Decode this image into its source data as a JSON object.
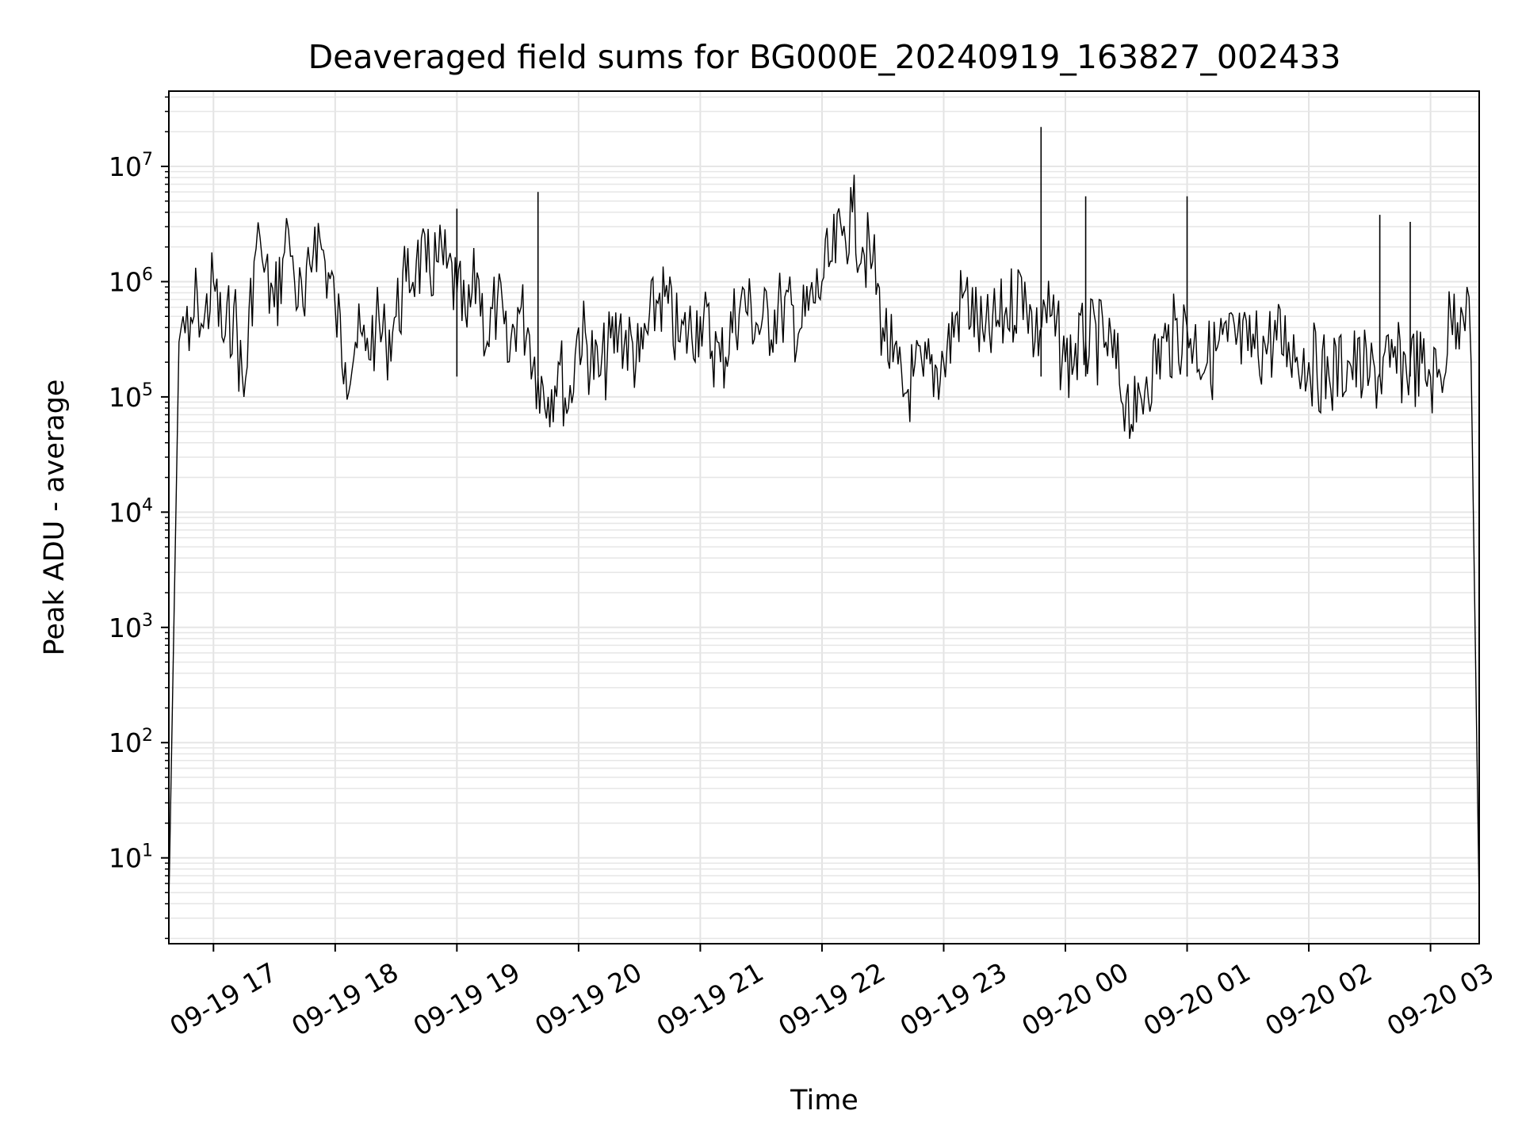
{
  "chart_data": {
    "type": "line",
    "title": "Deaveraged field sums for BG000E_20240919_163827_002433",
    "xlabel": "Time",
    "ylabel": "Peak ADU - average",
    "yscale": "log",
    "grid": true,
    "line_color": "#000000",
    "xlim": [
      "2024-09-19 16:38",
      "2024-09-20 03:24"
    ],
    "ylim": [
      1.8,
      45000000
    ],
    "x_ticks": [
      "09-19 17",
      "09-19 18",
      "09-19 19",
      "09-19 20",
      "09-19 21",
      "09-19 22",
      "09-19 23",
      "09-20 00",
      "09-20 01",
      "09-20 02",
      "09-20 03"
    ],
    "y_ticks": [
      {
        "base": "10",
        "exp": "1",
        "value": 10
      },
      {
        "base": "10",
        "exp": "2",
        "value": 100
      },
      {
        "base": "10",
        "exp": "3",
        "value": 1000
      },
      {
        "base": "10",
        "exp": "4",
        "value": 10000
      },
      {
        "base": "10",
        "exp": "5",
        "value": 100000
      },
      {
        "base": "10",
        "exp": "6",
        "value": 1000000
      },
      {
        "base": "10",
        "exp": "7",
        "value": 10000000
      }
    ],
    "series": [
      {
        "x": [
          "2024-09-19 16:38",
          "2024-09-19 16:43",
          "2024-09-19 16:45",
          "2024-09-19 16:48",
          "2024-09-19 16:52",
          "2024-09-19 16:55",
          "2024-09-19 17:00",
          "2024-09-19 17:05",
          "2024-09-19 17:10",
          "2024-09-19 17:15",
          "2024-09-19 17:20",
          "2024-09-19 17:23",
          "2024-09-19 17:25",
          "2024-09-19 17:30",
          "2024-09-19 17:35",
          "2024-09-19 17:37",
          "2024-09-19 17:40",
          "2024-09-19 17:45",
          "2024-09-19 17:50",
          "2024-09-19 17:55",
          "2024-09-19 18:00",
          "2024-09-19 18:05",
          "2024-09-19 18:10",
          "2024-09-19 18:15",
          "2024-09-19 18:20",
          "2024-09-19 18:25",
          "2024-09-19 18:30",
          "2024-09-19 18:35",
          "2024-09-19 18:40",
          "2024-09-19 18:45",
          "2024-09-19 18:50",
          "2024-09-19 18:55",
          "2024-09-19 19:00",
          "2024-09-19 19:05",
          "2024-09-19 19:10",
          "2024-09-19 19:15",
          "2024-09-19 19:20",
          "2024-09-19 19:25",
          "2024-09-19 19:30",
          "2024-09-19 19:35",
          "2024-09-19 19:40",
          "2024-09-19 19:45",
          "2024-09-19 19:50",
          "2024-09-19 19:55",
          "2024-09-19 20:00",
          "2024-09-19 20:10",
          "2024-09-19 20:20",
          "2024-09-19 20:30",
          "2024-09-19 20:40",
          "2024-09-19 20:50",
          "2024-09-19 21:00",
          "2024-09-19 21:10",
          "2024-09-19 21:20",
          "2024-09-19 21:30",
          "2024-09-19 21:40",
          "2024-09-19 21:50",
          "2024-09-19 22:00",
          "2024-09-19 22:05",
          "2024-09-19 22:10",
          "2024-09-19 22:15",
          "2024-09-19 22:20",
          "2024-09-19 22:25",
          "2024-09-19 22:30",
          "2024-09-19 22:35",
          "2024-09-19 22:40",
          "2024-09-19 22:45",
          "2024-09-19 22:50",
          "2024-09-19 23:00",
          "2024-09-19 23:10",
          "2024-09-19 23:20",
          "2024-09-19 23:30",
          "2024-09-19 23:40",
          "2024-09-19 23:45",
          "2024-09-19 23:50",
          "2024-09-20 00:00",
          "2024-09-20 00:10",
          "2024-09-20 00:20",
          "2024-09-20 00:30",
          "2024-09-20 00:35",
          "2024-09-20 00:40",
          "2024-09-20 00:50",
          "2024-09-20 01:00",
          "2024-09-20 01:10",
          "2024-09-20 01:20",
          "2024-09-20 01:30",
          "2024-09-20 01:40",
          "2024-09-20 01:50",
          "2024-09-20 02:00",
          "2024-09-20 02:10",
          "2024-09-20 02:20",
          "2024-09-20 02:30",
          "2024-09-20 02:40",
          "2024-09-20 02:50",
          "2024-09-20 03:00",
          "2024-09-20 03:05",
          "2024-09-20 03:10",
          "2024-09-20 03:15",
          "2024-09-20 03:18",
          "2024-09-20 03:20",
          "2024-09-20 03:24"
        ],
        "y": [
          4,
          300000,
          500000,
          250000,
          800000,
          400000,
          1000000,
          300000,
          600000,
          100000,
          1500000,
          2400000,
          1200000,
          600000,
          1800000,
          2800000,
          1000000,
          500000,
          3000000,
          1500000,
          600000,
          200000,
          300000,
          250000,
          400000,
          300000,
          500000,
          1000000,
          1500000,
          1200000,
          1500000,
          1300000,
          800000,
          400000,
          1200000,
          300000,
          700000,
          200000,
          600000,
          400000,
          150000,
          100000,
          200000,
          80000,
          400000,
          150000,
          400000,
          200000,
          800000,
          300000,
          500000,
          200000,
          700000,
          400000,
          600000,
          400000,
          1000000,
          1500000,
          2500000,
          4000000,
          2000000,
          1500000,
          400000,
          200000,
          100000,
          150000,
          150000,
          200000,
          800000,
          300000,
          500000,
          1000000,
          300000,
          600000,
          200000,
          300000,
          300000,
          100000,
          60000,
          150000,
          300000,
          400000,
          200000,
          300000,
          250000,
          300000,
          300000,
          200000,
          150000,
          200000,
          150000,
          180000,
          200000,
          150000,
          150000,
          500000,
          600000,
          900000,
          200000,
          4
        ]
      }
    ],
    "spikes": [
      {
        "x": "2024-09-19 19:40",
        "y": 6000000
      },
      {
        "x": "2024-09-19 23:48",
        "y": 22000000
      },
      {
        "x": "2024-09-20 00:10",
        "y": 5500000
      },
      {
        "x": "2024-09-20 01:00",
        "y": 5500000
      },
      {
        "x": "2024-09-19 19:00",
        "y": 4300000
      },
      {
        "x": "2024-09-20 02:35",
        "y": 3800000
      },
      {
        "x": "2024-09-20 02:50",
        "y": 3300000
      }
    ]
  }
}
